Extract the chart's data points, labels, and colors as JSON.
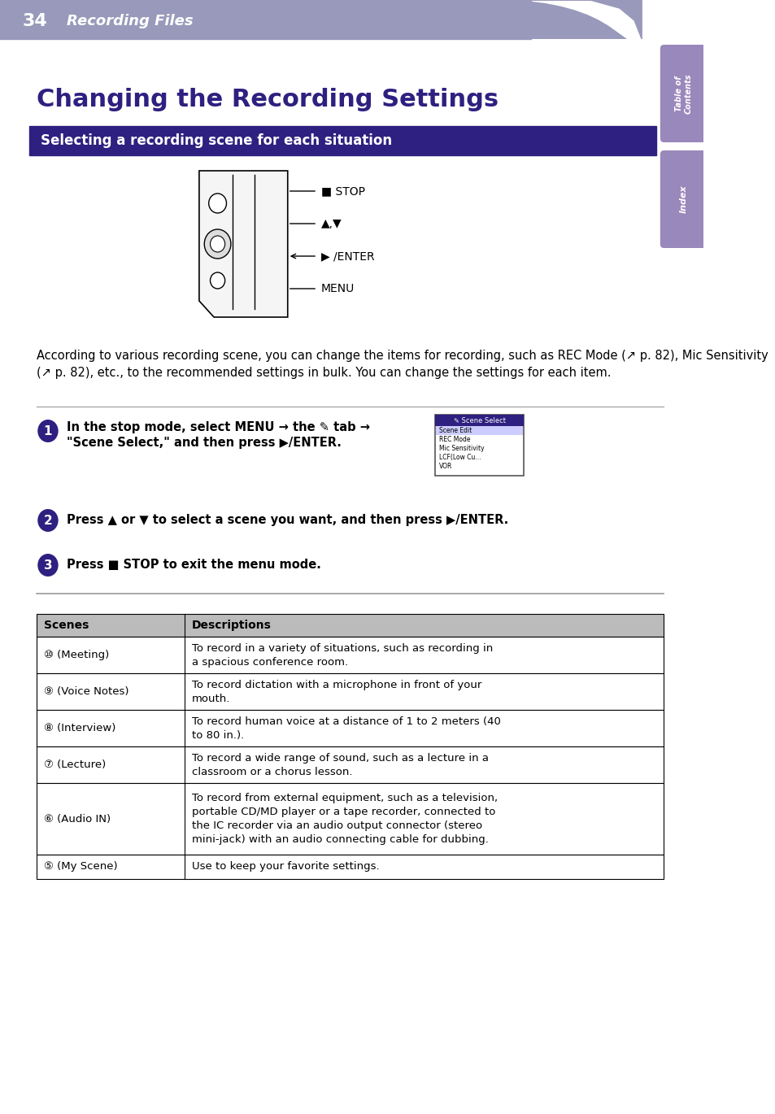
{
  "page_bg": "#ffffff",
  "header_bg": "#9999bb",
  "header_text": "34    Recording Files",
  "header_text_color": "#ffffff",
  "title": "Changing the Recording Settings",
  "title_color": "#2e2080",
  "section_bar_color": "#2e2080",
  "section_text": "Selecting a recording scene for each situation",
  "section_text_color": "#ffffff",
  "body_text_color": "#000000",
  "body_paragraph": "According to various recording scene, you can change the items for recording, such as REC Mode (↗ p. 82), Mic Sensitivity (↗ p. 82), etc., to the recommended settings in bulk. You can change the settings for each item.",
  "step1_text": "In the stop mode, select MENU → the ↗ tab →\n“Scene Select,” and then press ►/ENTER.",
  "step2_text": "Press ▲ or ▼ to select a scene you want, and then press ►/ENTER.",
  "step3_text": "Press ■ STOP to exit the menu mode.",
  "table_header_bg": "#cccccc",
  "table_scenes": [
    [
      "⑩ (Meeting)",
      "To record in a variety of situations, such as recording in\na spacious conference room."
    ],
    [
      "⑨ (Voice Notes)",
      "To record dictation with a microphone in front of your\nmouth."
    ],
    [
      "⑧ (Interview)",
      "To record human voice at a distance of 1 to 2 meters (40\nto 80 in.)."
    ],
    [
      "⑦ (Lecture)",
      "To record a wide range of sound, such as a lecture in a\nclassroom or a chorus lesson."
    ],
    [
      "⑥ (Audio IN)",
      "To record from external equipment, such as a television,\nportable CD/MD player or a tape recorder, connected to\nthe IC recorder via an audio output connector (stereo\nmini-jack) with an audio connecting cable for dubbing."
    ],
    [
      "⑤ (My Scene)",
      "Use to keep your favorite settings."
    ]
  ],
  "sidebar_toc_color": "#9988bb",
  "sidebar_index_color": "#9988bb",
  "step_circle_color": "#2e2080",
  "divider_color": "#999999"
}
